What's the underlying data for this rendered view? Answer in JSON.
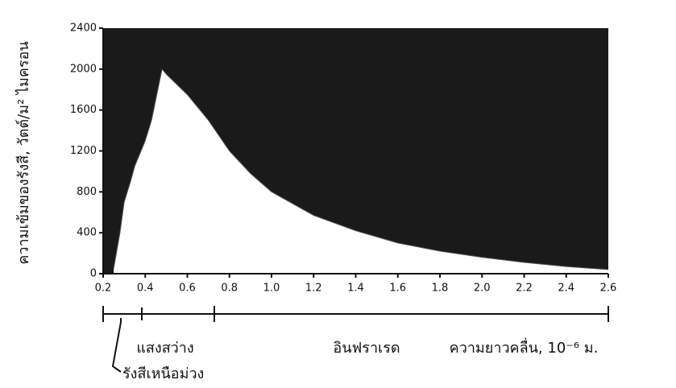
{
  "chart_data": {
    "type": "area",
    "y_label": "ความเข้มของรังสี, วัตต์/ม² ไมครอน",
    "x": [
      0.25,
      0.28,
      0.3,
      0.33,
      0.35,
      0.38,
      0.4,
      0.43,
      0.45,
      0.48,
      0.5,
      0.55,
      0.6,
      0.7,
      0.8,
      0.9,
      1.0,
      1.2,
      1.4,
      1.6,
      1.8,
      2.0,
      2.2,
      2.4,
      2.6
    ],
    "values": [
      50,
      400,
      700,
      900,
      1050,
      1200,
      1300,
      1500,
      1700,
      2000,
      1950,
      1850,
      1750,
      1500,
      1200,
      980,
      800,
      570,
      420,
      300,
      220,
      160,
      110,
      70,
      40
    ],
    "xlim": [
      0.2,
      2.6
    ],
    "ylim": [
      0,
      2400
    ],
    "xticks": [
      0.2,
      0.4,
      0.6,
      0.8,
      {
        "value": 1.0,
        "label": "1.0"
      },
      1.2,
      1.4,
      1.6,
      1.8,
      {
        "value": 2.0,
        "label": "2.0"
      },
      2.2,
      2.4,
      2.6
    ],
    "yticks": [
      0,
      400,
      800,
      1200,
      1600,
      2000,
      2400
    ],
    "background_color": "#1a1a1a",
    "area_color": "#ffffff",
    "annotations": {
      "visible": "แสงสว่าง",
      "infrared": "อินฟราเรด",
      "wavelength": "ความยาวคลื่น, 10⁻⁶ ม.",
      "ultraviolet": "รังสีเหนือม่วง"
    }
  }
}
